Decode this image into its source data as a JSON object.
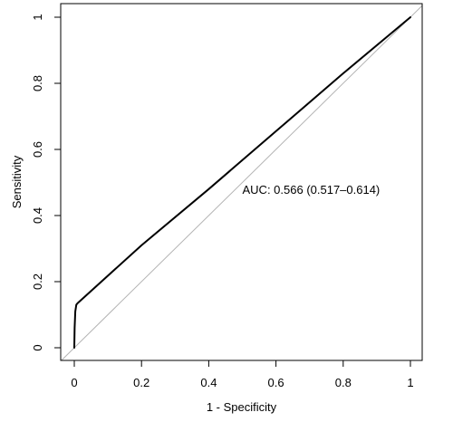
{
  "chart_data": {
    "type": "line",
    "title": "",
    "xlabel": "1 - Specificity",
    "ylabel": "Sensitivity",
    "xlim": [
      0,
      1
    ],
    "ylim": [
      0,
      1
    ],
    "x_ticks": [
      0,
      0.2,
      0.4,
      0.6,
      0.8,
      1
    ],
    "x_tick_labels": [
      "0",
      "0.2",
      "0.4",
      "0.6",
      "0.8",
      "1"
    ],
    "y_ticks": [
      0,
      0.2,
      0.4,
      0.6,
      0.8,
      1
    ],
    "y_tick_labels": [
      "0",
      "0.2",
      "0.4",
      "0.6",
      "0.8",
      "1"
    ],
    "grid": false,
    "series": [
      {
        "color": "#000000",
        "x": [
          0,
          0.001,
          0.003,
          0.006,
          0.01,
          0.2,
          0.4,
          0.6,
          0.8,
          1
        ],
        "y": [
          0,
          0.06,
          0.11,
          0.13,
          0.135,
          0.31,
          0.48,
          0.655,
          0.83,
          1
        ]
      }
    ],
    "reference_line": {
      "x": [
        -0.04,
        1.04
      ],
      "y": [
        -0.04,
        1.04
      ],
      "color": "#b3b3b3"
    },
    "annotation": {
      "text": "AUC: 0.566 (0.517–0.614)",
      "x": 0.5,
      "y": 0.48
    }
  }
}
